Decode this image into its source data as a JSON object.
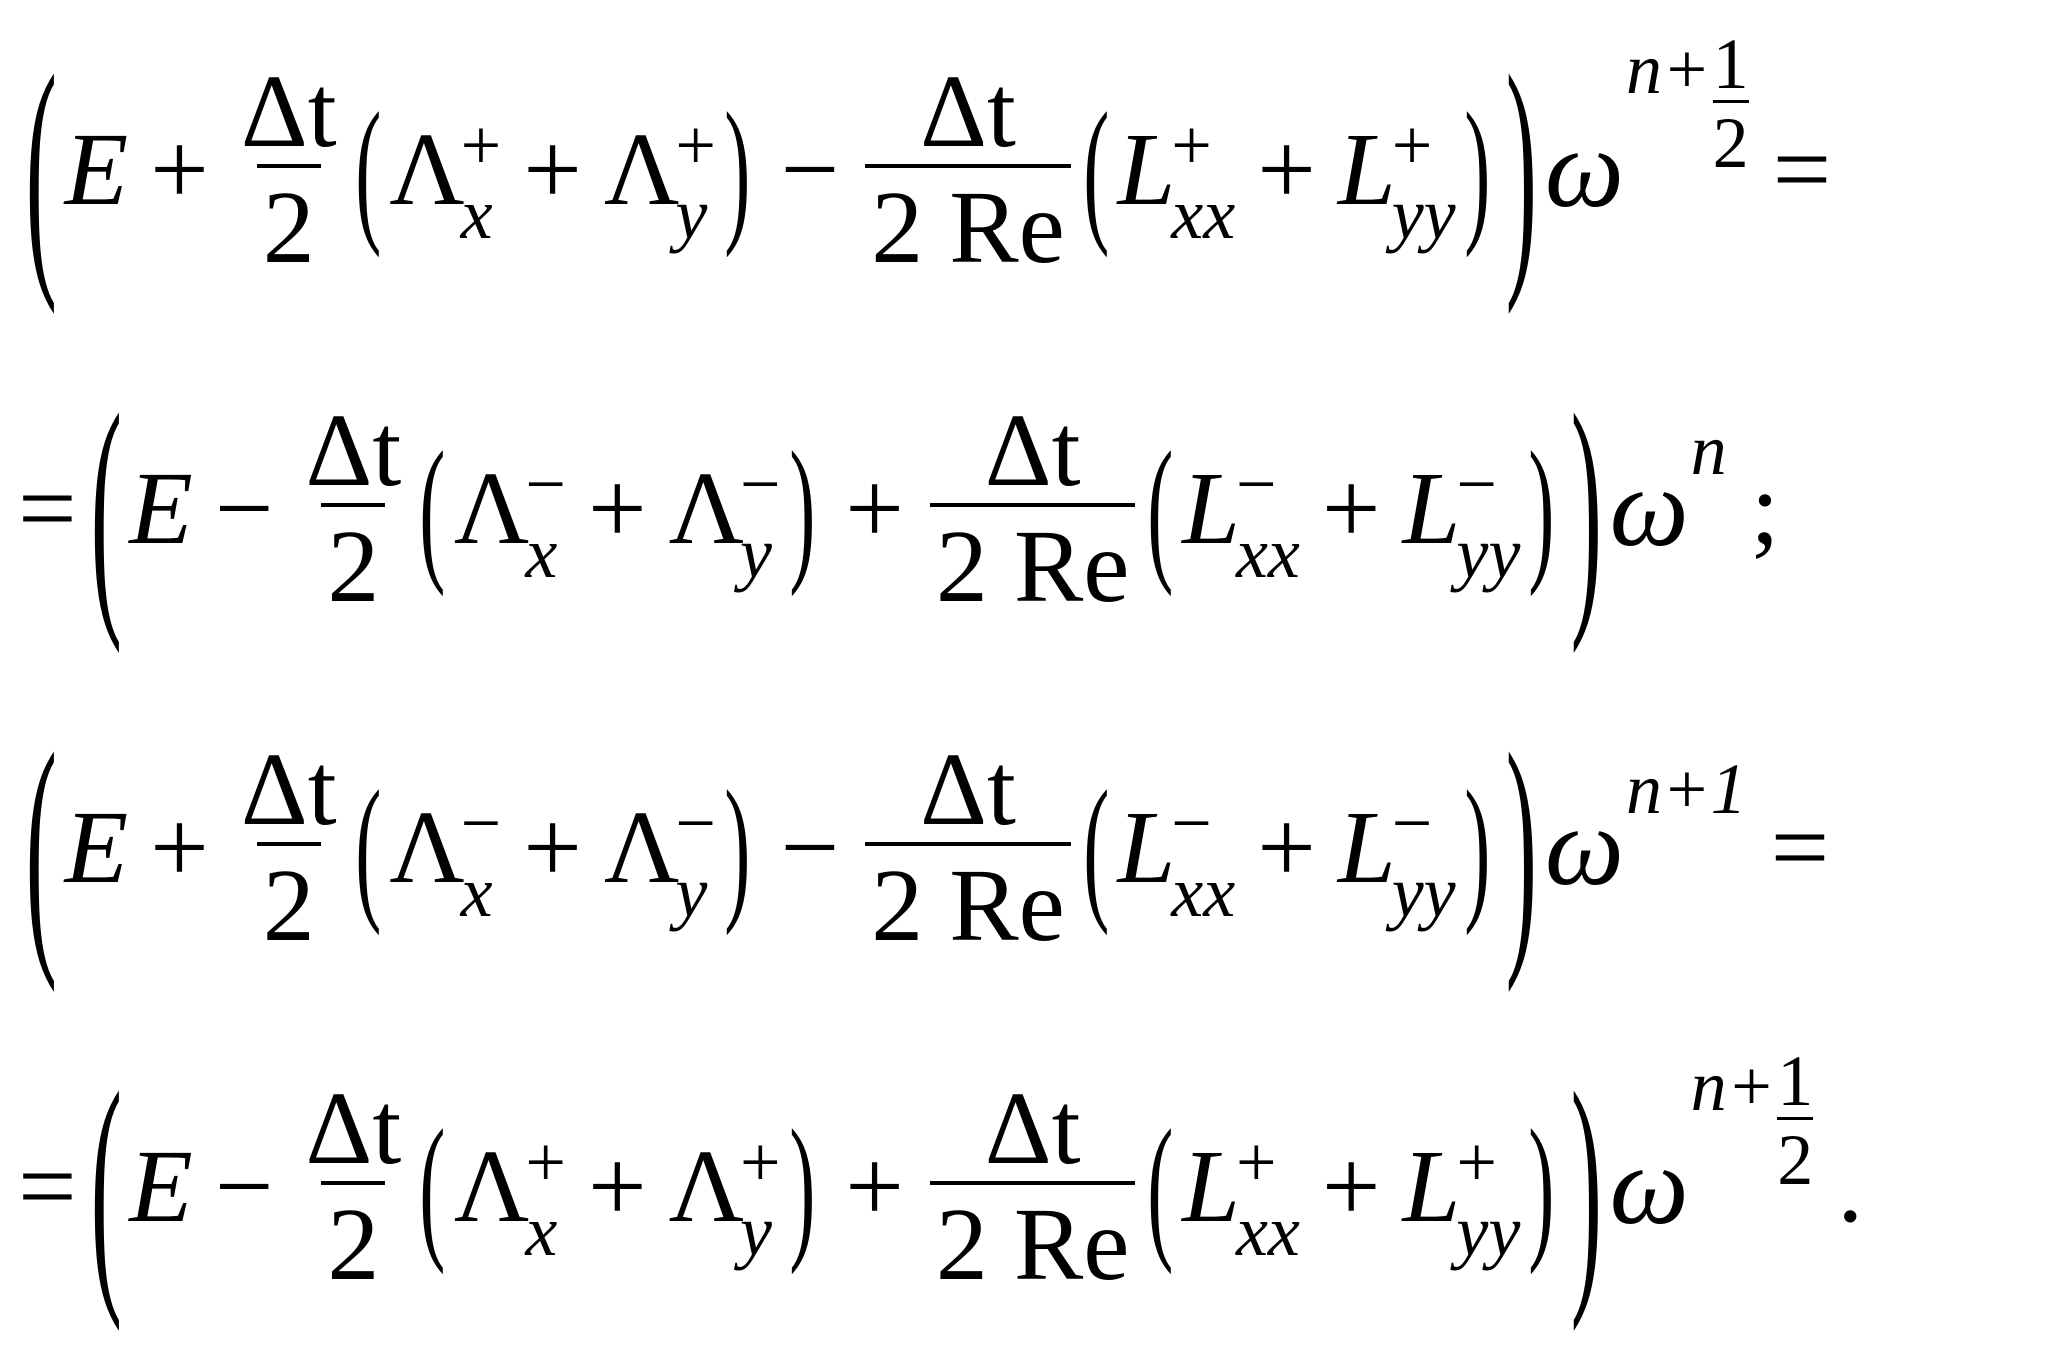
{
  "symbols": {
    "E": "E",
    "delta_t": "Δt",
    "two": "2",
    "two_re": "2 Re",
    "Lambda": "Λ",
    "L": "L",
    "x": "x",
    "y": "y",
    "xx": "xx",
    "yy": "yy",
    "omega": "ω",
    "open_paren": "(",
    "close_paren": ")",
    "plus": "+"
  },
  "lines": [
    {
      "prefix": "",
      "op1": "+",
      "op2": "−",
      "sign": "+",
      "exponent": {
        "base": "n+",
        "num": "1",
        "den": "2"
      },
      "suffix": "="
    },
    {
      "prefix": "=",
      "op1": "−",
      "op2": "+",
      "sign": "−",
      "exponent": {
        "base": "n"
      },
      "suffix": ";"
    },
    {
      "prefix": "",
      "op1": "+",
      "op2": "−",
      "sign": "−",
      "exponent": {
        "base": "n+1"
      },
      "suffix": "="
    },
    {
      "prefix": "=",
      "op1": "−",
      "op2": "+",
      "sign": "+",
      "exponent": {
        "base": "n+",
        "num": "1",
        "den": "2"
      },
      "suffix": "."
    }
  ]
}
